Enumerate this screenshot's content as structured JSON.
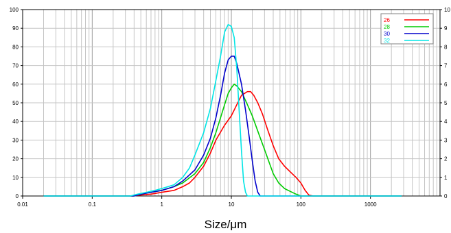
{
  "chart_data": {
    "type": "line",
    "xlabel": "Size/μm",
    "xscale": "log",
    "xlim": [
      0.01,
      10000
    ],
    "ylim": [
      0,
      100
    ],
    "y2lim": [
      0,
      10
    ],
    "legend_position": "top-right",
    "x_tick_labels": [
      "0.01",
      "0.1",
      "1",
      "10",
      "100",
      "1000"
    ],
    "y_tick_labels": [
      "0",
      "10",
      "20",
      "30",
      "40",
      "50",
      "60",
      "70",
      "80",
      "90",
      "100"
    ],
    "y2_tick_labels": [
      "0",
      "1",
      "2",
      "3",
      "4",
      "5",
      "6",
      "7",
      "8",
      "9",
      "10"
    ],
    "series": [
      {
        "name": "26",
        "color": "#ff0000",
        "points": [
          [
            0.02,
            0
          ],
          [
            0.38,
            0
          ],
          [
            0.5,
            0.5
          ],
          [
            0.7,
            1
          ],
          [
            1,
            2
          ],
          [
            1.5,
            3
          ],
          [
            2,
            5
          ],
          [
            2.5,
            7
          ],
          [
            3,
            10
          ],
          [
            4,
            16
          ],
          [
            5,
            23
          ],
          [
            6,
            30
          ],
          [
            8,
            38
          ],
          [
            10,
            43
          ],
          [
            12,
            49
          ],
          [
            14,
            54
          ],
          [
            17,
            56
          ],
          [
            19,
            56
          ],
          [
            21,
            54
          ],
          [
            24,
            50
          ],
          [
            28,
            44
          ],
          [
            33,
            36
          ],
          [
            40,
            27
          ],
          [
            48,
            20
          ],
          [
            58,
            16
          ],
          [
            70,
            13
          ],
          [
            85,
            10
          ],
          [
            100,
            7
          ],
          [
            115,
            3
          ],
          [
            130,
            0.5
          ],
          [
            150,
            0
          ],
          [
            2800,
            0
          ]
        ]
      },
      {
        "name": "28",
        "color": "#00cc00",
        "points": [
          [
            0.02,
            0
          ],
          [
            0.4,
            0
          ],
          [
            0.5,
            1
          ],
          [
            0.7,
            2
          ],
          [
            1,
            3
          ],
          [
            1.5,
            5
          ],
          [
            2,
            7
          ],
          [
            3,
            12
          ],
          [
            4,
            18
          ],
          [
            5,
            26
          ],
          [
            6,
            34
          ],
          [
            7,
            42
          ],
          [
            8,
            49
          ],
          [
            9,
            55
          ],
          [
            10,
            58
          ],
          [
            11,
            60
          ],
          [
            12,
            59
          ],
          [
            14,
            56
          ],
          [
            17,
            49
          ],
          [
            20,
            43
          ],
          [
            25,
            33
          ],
          [
            30,
            25
          ],
          [
            35,
            18
          ],
          [
            40,
            12
          ],
          [
            48,
            7
          ],
          [
            58,
            4
          ],
          [
            70,
            2.5
          ],
          [
            85,
            1
          ],
          [
            100,
            0
          ],
          [
            2800,
            0
          ]
        ]
      },
      {
        "name": "30",
        "color": "#0000cc",
        "points": [
          [
            0.02,
            0
          ],
          [
            0.4,
            0
          ],
          [
            0.5,
            1
          ],
          [
            0.7,
            2
          ],
          [
            1,
            3
          ],
          [
            1.5,
            5
          ],
          [
            2,
            8
          ],
          [
            3,
            14
          ],
          [
            4,
            22
          ],
          [
            5,
            31
          ],
          [
            6,
            42
          ],
          [
            7,
            54
          ],
          [
            8,
            66
          ],
          [
            9,
            73
          ],
          [
            10,
            75
          ],
          [
            11,
            75
          ],
          [
            12,
            71
          ],
          [
            14,
            60
          ],
          [
            16,
            46
          ],
          [
            18,
            32
          ],
          [
            20,
            19
          ],
          [
            22,
            8
          ],
          [
            24,
            2
          ],
          [
            26,
            0
          ],
          [
            2800,
            0
          ]
        ]
      },
      {
        "name": "32",
        "color": "#00e5e5",
        "points": [
          [
            0.02,
            0
          ],
          [
            0.35,
            0
          ],
          [
            0.45,
            1
          ],
          [
            0.6,
            2
          ],
          [
            0.8,
            3
          ],
          [
            1,
            4
          ],
          [
            1.5,
            6
          ],
          [
            2,
            10
          ],
          [
            2.5,
            15
          ],
          [
            3,
            22
          ],
          [
            4,
            34
          ],
          [
            5,
            47
          ],
          [
            6,
            62
          ],
          [
            7,
            75
          ],
          [
            8,
            88
          ],
          [
            9,
            92
          ],
          [
            10,
            91
          ],
          [
            11,
            85
          ],
          [
            12,
            68
          ],
          [
            13,
            45
          ],
          [
            14,
            24
          ],
          [
            15,
            8
          ],
          [
            16,
            2
          ],
          [
            17,
            0
          ],
          [
            2800,
            0
          ]
        ]
      }
    ]
  }
}
